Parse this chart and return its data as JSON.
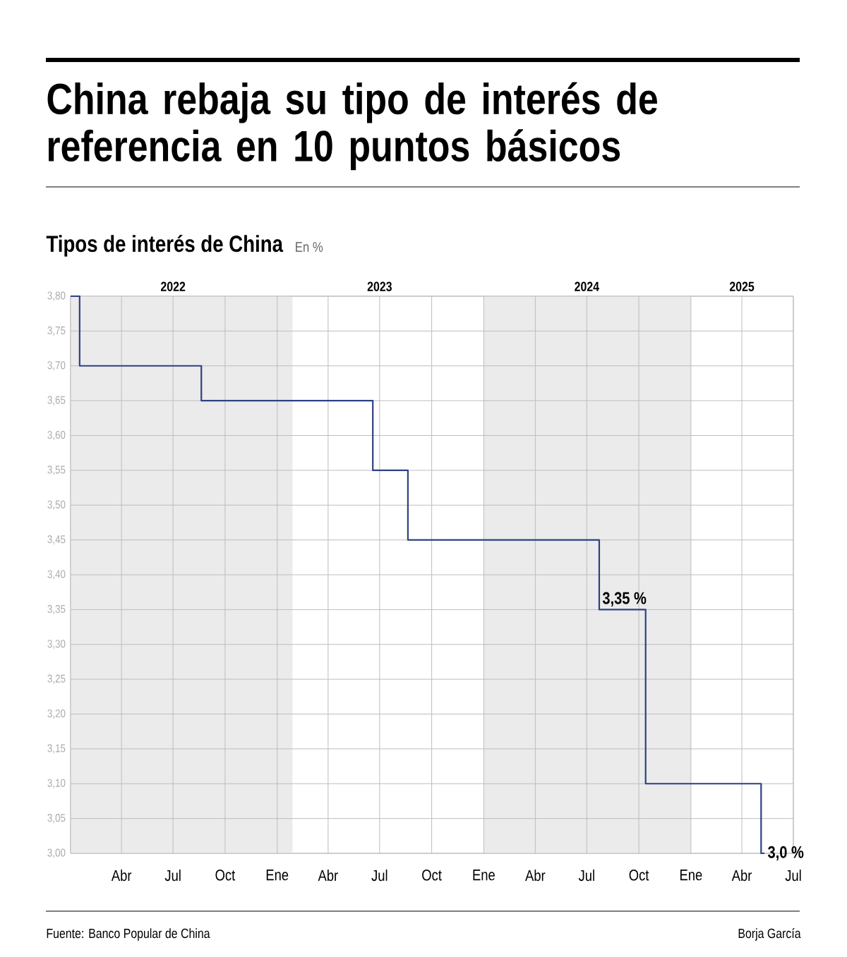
{
  "chart_data": {
    "type": "step",
    "title": "China rebaja su tipo de interés de referencia en 10 puntos básicos",
    "subtitle": "Tipos de interés de China",
    "ylabel": "En %",
    "series": [
      {
        "color": "#2e4283",
        "x": [
          "2022-01-01",
          "2022-01-17",
          "2022-08-20",
          "2023-06-19",
          "2023-08-20",
          "2024-07-23",
          "2024-10-13",
          "2025-05-05",
          "2025-05-11"
        ],
        "values": [
          3.8,
          3.7,
          3.65,
          3.55,
          3.45,
          3.35,
          3.1,
          3.0,
          3.0
        ]
      }
    ],
    "xlim": [
      "2022-01-01",
      "2025-07-01"
    ],
    "xticks": [
      {
        "value": "2022-01-01",
        "label": null
      },
      {
        "value": "2022-04-01",
        "label": "Abr"
      },
      {
        "value": "2022-07-01",
        "label": "Jul"
      },
      {
        "value": "2022-10-01",
        "label": "Oct"
      },
      {
        "value": "2023-01-01",
        "label": "Ene"
      },
      {
        "value": "2023-04-01",
        "label": "Abr"
      },
      {
        "value": "2023-07-01",
        "label": "Jul"
      },
      {
        "value": "2023-10-01",
        "label": "Oct"
      },
      {
        "value": "2024-01-01",
        "label": "Ene"
      },
      {
        "value": "2024-04-01",
        "label": "Abr"
      },
      {
        "value": "2024-07-01",
        "label": "Jul"
      },
      {
        "value": "2024-10-01",
        "label": "Oct"
      },
      {
        "value": "2025-01-01",
        "label": "Ene"
      },
      {
        "value": "2025-04-01",
        "label": "Abr"
      },
      {
        "value": "2025-07-01",
        "label": "Jul"
      }
    ],
    "x2lim": [
      "2022-01-01",
      "2025-07-01"
    ],
    "x2ticks": [
      {
        "value": "2022-07-01",
        "label": "2022"
      },
      {
        "value": "2023-07-01",
        "label": "2023"
      },
      {
        "value": "2024-07-01",
        "label": "2024"
      },
      {
        "value": "2025-04-01",
        "label": "2025"
      }
    ],
    "ylim": [
      3.0,
      3.8
    ],
    "yticks": [
      {
        "value": 3.0,
        "label": "3,00"
      },
      {
        "value": 3.05,
        "label": "3,05"
      },
      {
        "value": 3.1,
        "label": "3,10"
      },
      {
        "value": 3.15,
        "label": "3,15"
      },
      {
        "value": 3.2,
        "label": "3,20"
      },
      {
        "value": 3.25,
        "label": "3,25"
      },
      {
        "value": 3.3,
        "label": "3,30"
      },
      {
        "value": 3.35,
        "label": "3,35"
      },
      {
        "value": 3.4,
        "label": "3,40"
      },
      {
        "value": 3.45,
        "label": "3,45"
      },
      {
        "value": 3.5,
        "label": "3,50"
      },
      {
        "value": 3.55,
        "label": "3,55"
      },
      {
        "value": 3.6,
        "label": "3,60"
      },
      {
        "value": 3.65,
        "label": "3,65"
      },
      {
        "value": 3.7,
        "label": "3,70"
      },
      {
        "value": 3.75,
        "label": "3,75"
      },
      {
        "value": 3.8,
        "label": "3,80"
      }
    ],
    "grid": true,
    "bands": [
      {
        "axis": "x",
        "from": "2022-01-01",
        "to": "2023-01-28",
        "color": "#ebebeb"
      },
      {
        "axis": "x",
        "from": "2024-01-01",
        "to": "2025-01-01",
        "color": "#ebebeb"
      }
    ],
    "annotations": [
      {
        "text": "3,35 %",
        "x": "2024-07-23",
        "y": 3.35
      },
      {
        "text": "3,0 %",
        "x": "2025-05-11",
        "y": 3.0
      },
      "Fuente: Banco Popular de China",
      "Borja García"
    ]
  }
}
